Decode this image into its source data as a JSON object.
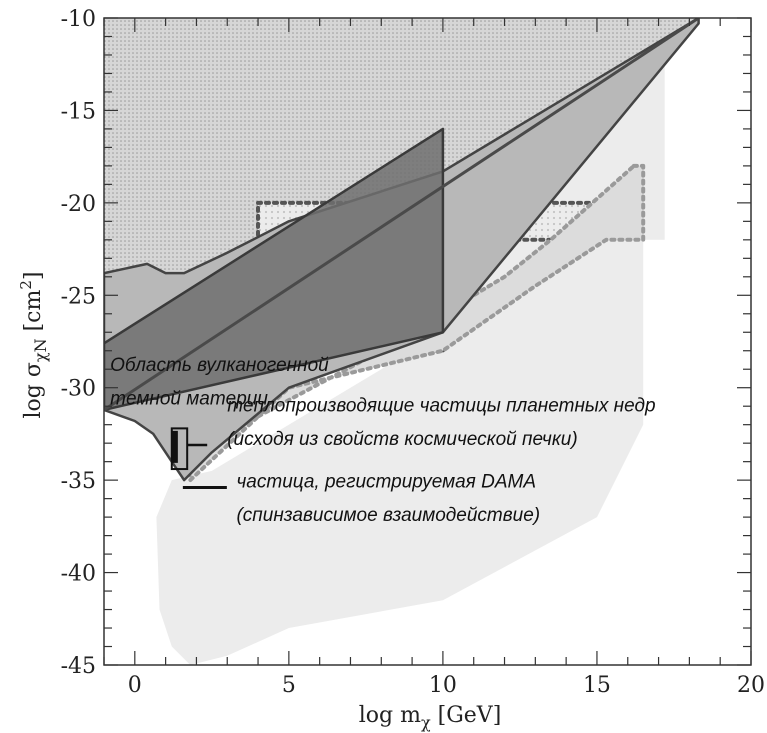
{
  "chart_data": {
    "type": "area",
    "xlabel": "log m",
    "xlabel_sub": "χ",
    "xlabel_unit": " [GeV]",
    "ylabel": "log σ",
    "ylabel_sub": "χN",
    "ylabel_unit": " [cm",
    "ylabel_sup": "2",
    "ylabel_unit_close": "]",
    "xlim": [
      -1,
      20
    ],
    "ylim": [
      -45,
      -10
    ],
    "x_ticks": [
      0,
      5,
      10,
      15,
      20
    ],
    "y_ticks": [
      -10,
      -15,
      -20,
      -25,
      -30,
      -35,
      -40,
      -45
    ],
    "grid": false,
    "regions": [
      {
        "id": "excluded-top",
        "fill": "#d9d9d9",
        "points": [
          [
            -1,
            -10
          ],
          [
            18.3,
            -10
          ],
          [
            10,
            -18.3
          ],
          [
            5,
            -21
          ],
          [
            3,
            -22.7
          ],
          [
            1.6,
            -23.8
          ],
          [
            1,
            -23.8
          ],
          [
            0.4,
            -23.3
          ],
          [
            -1,
            -23.8
          ]
        ]
      },
      {
        "id": "light-wedge",
        "fill": "#ececec",
        "points": [
          [
            16.2,
            -13.5
          ],
          [
            17.2,
            -12.5
          ],
          [
            17.2,
            -22
          ],
          [
            16.5,
            -22
          ],
          [
            16.5,
            -32
          ],
          [
            15,
            -37
          ],
          [
            10,
            -41.5
          ],
          [
            5,
            -43
          ],
          [
            3,
            -44.5
          ],
          [
            1.8,
            -45
          ],
          [
            1.2,
            -44
          ],
          [
            0.8,
            -42
          ],
          [
            0.7,
            -37
          ],
          [
            1.2,
            -35
          ],
          [
            2.5,
            -34.5
          ],
          [
            10,
            -27
          ]
        ]
      },
      {
        "id": "dotted-box",
        "fill": "#ebebeb",
        "stroke": "#555555",
        "points": [
          [
            4,
            -20
          ],
          [
            15.3,
            -20
          ],
          [
            15.3,
            -22
          ],
          [
            10,
            -22
          ],
          [
            10,
            -28
          ],
          [
            4,
            -28
          ]
        ]
      },
      {
        "id": "dotted-wedge",
        "fill": "#dcdcdc",
        "stroke": "#9a9a9a",
        "points": [
          [
            16.2,
            -18
          ],
          [
            16.5,
            -18
          ],
          [
            16.5,
            -22
          ],
          [
            15.3,
            -22
          ],
          [
            13,
            -24.5
          ],
          [
            10,
            -28
          ],
          [
            5,
            -30
          ],
          [
            1.8,
            -35
          ],
          [
            1.6,
            -33
          ],
          [
            3.5,
            -32
          ],
          [
            8,
            -28
          ],
          [
            12,
            -24
          ],
          [
            13.5,
            -22
          ]
        ]
      },
      {
        "id": "volcanogenic-band",
        "fill": "#b8b8b8",
        "stroke": "#444444",
        "points": [
          [
            -1,
            -23.8
          ],
          [
            0.4,
            -23.3
          ],
          [
            1,
            -23.8
          ],
          [
            1.6,
            -23.8
          ],
          [
            3,
            -22.7
          ],
          [
            5,
            -21
          ],
          [
            10,
            -18.3
          ],
          [
            18.3,
            -10
          ],
          [
            18.3,
            -10.3
          ],
          [
            10,
            -27
          ],
          [
            5,
            -30
          ],
          [
            2.5,
            -33.5
          ],
          [
            1.6,
            -35
          ],
          [
            1.2,
            -34
          ],
          [
            0.6,
            -32.5
          ],
          [
            0,
            -31.8
          ],
          [
            -1,
            -31.2
          ]
        ]
      },
      {
        "id": "dark-parallelogram",
        "fill": "#6e6e6e",
        "stroke": "#3a3a3a",
        "points": [
          [
            -1,
            -27.6
          ],
          [
            10,
            -16
          ],
          [
            10,
            -27
          ],
          [
            -1,
            -31.2
          ]
        ]
      }
    ],
    "lines": [
      {
        "id": "diagonal-line",
        "stroke": "#4a4a4a",
        "points": [
          [
            -1,
            -31.2
          ],
          [
            18.3,
            -10
          ]
        ]
      }
    ],
    "markers": [
      {
        "id": "heat-particle-box",
        "x0": 1.2,
        "x1": 1.7,
        "y0": -32.2,
        "y1": -34.4
      },
      {
        "id": "dama-point",
        "x": 1.3,
        "y": -33.2
      }
    ],
    "annotations": [
      {
        "key": "volcanogenic_1",
        "text": "Область вулканогенной",
        "x": -0.8,
        "y": -29.1
      },
      {
        "key": "volcanogenic_2",
        "text": "темной материи",
        "x": -0.8,
        "y": -30.9
      },
      {
        "key": "heat_1",
        "text": "теплопроизводящие частицы планетных недр",
        "x": 3.0,
        "y": -31.3
      },
      {
        "key": "heat_2",
        "text": "(исходя из свойств космической печки)",
        "x": 3.0,
        "y": -33.1
      },
      {
        "key": "dama_1",
        "text": "частица, регистрируемая DAMA",
        "x": 3.3,
        "y": -35.4
      },
      {
        "key": "dama_2",
        "text": "(спинзависимое взаимодействие)",
        "x": 3.3,
        "y": -37.2
      }
    ]
  }
}
